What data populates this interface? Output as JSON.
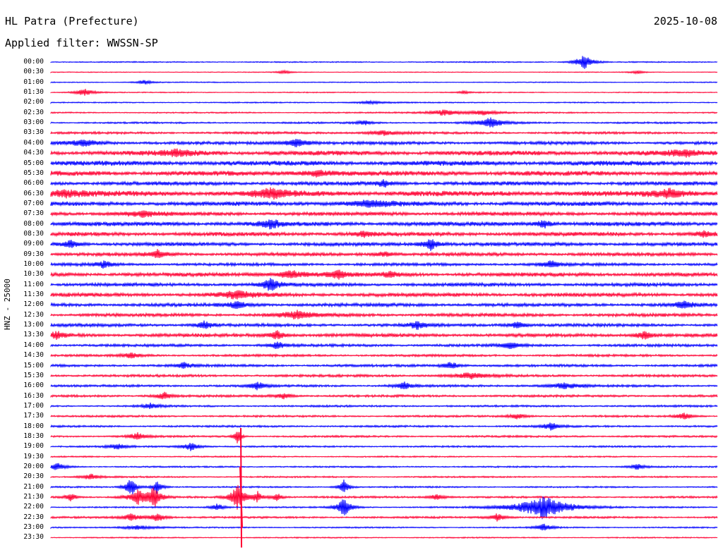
{
  "header": {
    "station": "HL Patra (Prefecture)",
    "date": "2025-10-08",
    "filter_label": "Applied filter: WWSSN-SP",
    "channel_label": "HNZ - 25000"
  },
  "colors": {
    "odd": "#0000ff",
    "even": "#ff0033"
  },
  "chart_data": {
    "type": "line",
    "title": "HL Patra (Prefecture)",
    "xlabel": "",
    "ylabel": "HNZ - 25000",
    "rows": [
      {
        "time": "00:00",
        "color": "blue",
        "noise": 0.6,
        "events": [
          {
            "x": 0.8,
            "amp": 11,
            "w": 0.01
          }
        ]
      },
      {
        "time": "00:30",
        "color": "red",
        "noise": 0.4,
        "events": [
          {
            "x": 0.35,
            "amp": 2,
            "w": 0.01
          },
          {
            "x": 0.88,
            "amp": 2,
            "w": 0.01
          }
        ]
      },
      {
        "time": "01:00",
        "color": "blue",
        "noise": 0.5,
        "events": [
          {
            "x": 0.14,
            "amp": 3,
            "w": 0.01
          }
        ]
      },
      {
        "time": "01:30",
        "color": "red",
        "noise": 0.5,
        "events": [
          {
            "x": 0.05,
            "amp": 5,
            "w": 0.012
          },
          {
            "x": 0.62,
            "amp": 2,
            "w": 0.01
          }
        ]
      },
      {
        "time": "02:00",
        "color": "blue",
        "noise": 0.6,
        "events": [
          {
            "x": 0.48,
            "amp": 2,
            "w": 0.02
          }
        ]
      },
      {
        "time": "02:30",
        "color": "red",
        "noise": 0.7,
        "events": [
          {
            "x": 0.59,
            "amp": 4,
            "w": 0.02
          },
          {
            "x": 0.65,
            "amp": 3,
            "w": 0.02
          }
        ]
      },
      {
        "time": "03:00",
        "color": "blue",
        "noise": 0.9,
        "events": [
          {
            "x": 0.66,
            "amp": 7,
            "w": 0.015
          },
          {
            "x": 0.47,
            "amp": 3,
            "w": 0.01
          }
        ]
      },
      {
        "time": "03:30",
        "color": "red",
        "noise": 1.2,
        "events": [
          {
            "x": 0.5,
            "amp": 3,
            "w": 0.02
          }
        ]
      },
      {
        "time": "04:00",
        "color": "blue",
        "noise": 1.6,
        "events": [
          {
            "x": 0.37,
            "amp": 6,
            "w": 0.015
          },
          {
            "x": 0.05,
            "amp": 4,
            "w": 0.02
          }
        ]
      },
      {
        "time": "04:30",
        "color": "red",
        "noise": 2.4,
        "events": [
          {
            "x": 0.19,
            "amp": 4,
            "w": 0.02
          },
          {
            "x": 0.95,
            "amp": 4,
            "w": 0.02
          }
        ]
      },
      {
        "time": "05:00",
        "color": "blue",
        "noise": 2.5,
        "events": []
      },
      {
        "time": "05:30",
        "color": "red",
        "noise": 2.5,
        "events": [
          {
            "x": 0.4,
            "amp": 4,
            "w": 0.02
          }
        ]
      },
      {
        "time": "06:00",
        "color": "blue",
        "noise": 2.0,
        "events": [
          {
            "x": 0.5,
            "amp": 4,
            "w": 0.01
          }
        ]
      },
      {
        "time": "06:30",
        "color": "red",
        "noise": 2.8,
        "events": [
          {
            "x": 0.33,
            "amp": 6,
            "w": 0.02
          },
          {
            "x": 0.02,
            "amp": 5,
            "w": 0.02
          },
          {
            "x": 0.93,
            "amp": 5,
            "w": 0.02
          }
        ]
      },
      {
        "time": "07:00",
        "color": "blue",
        "noise": 2.2,
        "events": [
          {
            "x": 0.48,
            "amp": 4,
            "w": 0.03
          }
        ]
      },
      {
        "time": "07:30",
        "color": "red",
        "noise": 2.0,
        "events": [
          {
            "x": 0.14,
            "amp": 4,
            "w": 0.02
          }
        ]
      },
      {
        "time": "08:00",
        "color": "blue",
        "noise": 2.2,
        "events": [
          {
            "x": 0.33,
            "amp": 6,
            "w": 0.012
          },
          {
            "x": 0.74,
            "amp": 5,
            "w": 0.01
          }
        ]
      },
      {
        "time": "08:30",
        "color": "red",
        "noise": 2.1,
        "events": [
          {
            "x": 0.47,
            "amp": 4,
            "w": 0.01
          },
          {
            "x": 0.98,
            "amp": 4,
            "w": 0.01
          }
        ]
      },
      {
        "time": "09:00",
        "color": "blue",
        "noise": 1.9,
        "events": [
          {
            "x": 0.57,
            "amp": 8,
            "w": 0.01
          },
          {
            "x": 0.03,
            "amp": 5,
            "w": 0.01
          }
        ]
      },
      {
        "time": "09:30",
        "color": "red",
        "noise": 1.8,
        "events": [
          {
            "x": 0.16,
            "amp": 5,
            "w": 0.01
          },
          {
            "x": 0.5,
            "amp": 4,
            "w": 0.01
          }
        ]
      },
      {
        "time": "10:00",
        "color": "blue",
        "noise": 1.5,
        "events": [
          {
            "x": 0.08,
            "amp": 5,
            "w": 0.01
          },
          {
            "x": 0.75,
            "amp": 5,
            "w": 0.01
          }
        ]
      },
      {
        "time": "10:30",
        "color": "red",
        "noise": 2.0,
        "events": [
          {
            "x": 0.36,
            "amp": 5,
            "w": 0.02
          },
          {
            "x": 0.43,
            "amp": 6,
            "w": 0.01
          },
          {
            "x": 0.51,
            "amp": 4,
            "w": 0.01
          }
        ]
      },
      {
        "time": "11:00",
        "color": "blue",
        "noise": 1.8,
        "events": [
          {
            "x": 0.33,
            "amp": 9,
            "w": 0.01
          }
        ]
      },
      {
        "time": "11:30",
        "color": "red",
        "noise": 2.0,
        "events": [
          {
            "x": 0.28,
            "amp": 5,
            "w": 0.02
          }
        ]
      },
      {
        "time": "12:00",
        "color": "blue",
        "noise": 1.8,
        "events": [
          {
            "x": 0.28,
            "amp": 6,
            "w": 0.01
          },
          {
            "x": 0.95,
            "amp": 6,
            "w": 0.01
          }
        ]
      },
      {
        "time": "12:30",
        "color": "red",
        "noise": 1.7,
        "events": [
          {
            "x": 0.37,
            "amp": 5,
            "w": 0.02
          }
        ]
      },
      {
        "time": "13:00",
        "color": "blue",
        "noise": 1.6,
        "events": [
          {
            "x": 0.23,
            "amp": 5,
            "w": 0.01
          },
          {
            "x": 0.55,
            "amp": 5,
            "w": 0.01
          },
          {
            "x": 0.7,
            "amp": 5,
            "w": 0.01
          }
        ]
      },
      {
        "time": "13:30",
        "color": "red",
        "noise": 1.8,
        "events": [
          {
            "x": 0.34,
            "amp": 6,
            "w": 0.01
          },
          {
            "x": 0.01,
            "amp": 5,
            "w": 0.01
          },
          {
            "x": 0.89,
            "amp": 6,
            "w": 0.01
          }
        ]
      },
      {
        "time": "14:00",
        "color": "blue",
        "noise": 1.4,
        "events": [
          {
            "x": 0.34,
            "amp": 5,
            "w": 0.01
          },
          {
            "x": 0.69,
            "amp": 5,
            "w": 0.01
          }
        ]
      },
      {
        "time": "14:30",
        "color": "red",
        "noise": 1.2,
        "events": [
          {
            "x": 0.12,
            "amp": 4,
            "w": 0.01
          }
        ]
      },
      {
        "time": "15:00",
        "color": "blue",
        "noise": 1.3,
        "events": [
          {
            "x": 0.6,
            "amp": 5,
            "w": 0.01
          },
          {
            "x": 0.2,
            "amp": 4,
            "w": 0.01
          }
        ]
      },
      {
        "time": "15:30",
        "color": "red",
        "noise": 1.3,
        "events": [
          {
            "x": 0.63,
            "amp": 4,
            "w": 0.02
          }
        ]
      },
      {
        "time": "16:00",
        "color": "blue",
        "noise": 1.2,
        "events": [
          {
            "x": 0.31,
            "amp": 5,
            "w": 0.01
          },
          {
            "x": 0.53,
            "amp": 5,
            "w": 0.01
          },
          {
            "x": 0.77,
            "amp": 4,
            "w": 0.02
          }
        ]
      },
      {
        "time": "16:30",
        "color": "red",
        "noise": 1.2,
        "events": [
          {
            "x": 0.17,
            "amp": 5,
            "w": 0.01
          },
          {
            "x": 0.35,
            "amp": 4,
            "w": 0.01
          }
        ]
      },
      {
        "time": "17:00",
        "color": "blue",
        "noise": 1.0,
        "events": [
          {
            "x": 0.15,
            "amp": 4,
            "w": 0.01
          }
        ]
      },
      {
        "time": "17:30",
        "color": "red",
        "noise": 1.0,
        "events": [
          {
            "x": 0.7,
            "amp": 4,
            "w": 0.01
          },
          {
            "x": 0.95,
            "amp": 5,
            "w": 0.01
          }
        ]
      },
      {
        "time": "18:00",
        "color": "blue",
        "noise": 1.0,
        "events": [
          {
            "x": 0.75,
            "amp": 5,
            "w": 0.01
          }
        ]
      },
      {
        "time": "18:30",
        "color": "red",
        "noise": 1.0,
        "events": [
          {
            "x": 0.13,
            "amp": 5,
            "w": 0.01
          },
          {
            "x": 0.28,
            "amp": 12,
            "w": 0.004
          }
        ]
      },
      {
        "time": "19:00",
        "color": "blue",
        "noise": 0.9,
        "events": [
          {
            "x": 0.21,
            "amp": 6,
            "w": 0.01
          },
          {
            "x": 0.1,
            "amp": 4,
            "w": 0.01
          }
        ]
      },
      {
        "time": "19:30",
        "color": "red",
        "noise": 0.7,
        "events": []
      },
      {
        "time": "20:00",
        "color": "blue",
        "noise": 0.8,
        "events": [
          {
            "x": 0.01,
            "amp": 5,
            "w": 0.01
          },
          {
            "x": 0.88,
            "amp": 4,
            "w": 0.01
          }
        ]
      },
      {
        "time": "20:30",
        "color": "red",
        "noise": 0.8,
        "events": [
          {
            "x": 0.06,
            "amp": 4,
            "w": 0.01
          }
        ]
      },
      {
        "time": "21:00",
        "color": "blue",
        "noise": 0.8,
        "events": [
          {
            "x": 0.12,
            "amp": 14,
            "w": 0.006
          },
          {
            "x": 0.16,
            "amp": 10,
            "w": 0.006
          },
          {
            "x": 0.44,
            "amp": 10,
            "w": 0.006
          }
        ]
      },
      {
        "time": "21:30",
        "color": "red",
        "noise": 1.0,
        "events": [
          {
            "x": 0.03,
            "amp": 6,
            "w": 0.006
          },
          {
            "x": 0.13,
            "amp": 10,
            "w": 0.012
          },
          {
            "x": 0.155,
            "amp": 14,
            "w": 0.008
          },
          {
            "x": 0.28,
            "amp": 18,
            "w": 0.008
          },
          {
            "x": 0.31,
            "amp": 8,
            "w": 0.006
          },
          {
            "x": 0.34,
            "amp": 6,
            "w": 0.006
          },
          {
            "x": 0.58,
            "amp": 4,
            "w": 0.01
          }
        ]
      },
      {
        "time": "22:00",
        "color": "blue",
        "noise": 0.8,
        "events": [
          {
            "x": 0.25,
            "amp": 5,
            "w": 0.008
          },
          {
            "x": 0.44,
            "amp": 14,
            "w": 0.008
          },
          {
            "x": 0.74,
            "amp": 16,
            "w": 0.03
          }
        ]
      },
      {
        "time": "22:30",
        "color": "red",
        "noise": 1.0,
        "events": [
          {
            "x": 0.12,
            "amp": 5,
            "w": 0.01
          },
          {
            "x": 0.16,
            "amp": 6,
            "w": 0.01
          },
          {
            "x": 0.67,
            "amp": 5,
            "w": 0.01
          }
        ]
      },
      {
        "time": "23:00",
        "color": "blue",
        "noise": 0.7,
        "events": [
          {
            "x": 0.13,
            "amp": 3,
            "w": 0.02
          },
          {
            "x": 0.74,
            "amp": 5,
            "w": 0.01
          }
        ]
      },
      {
        "time": "23:30",
        "color": "red",
        "noise": 0.6,
        "events": []
      }
    ],
    "big_spike": {
      "x": 0.285,
      "from_time": "18:30",
      "to_time": "23:30"
    }
  }
}
